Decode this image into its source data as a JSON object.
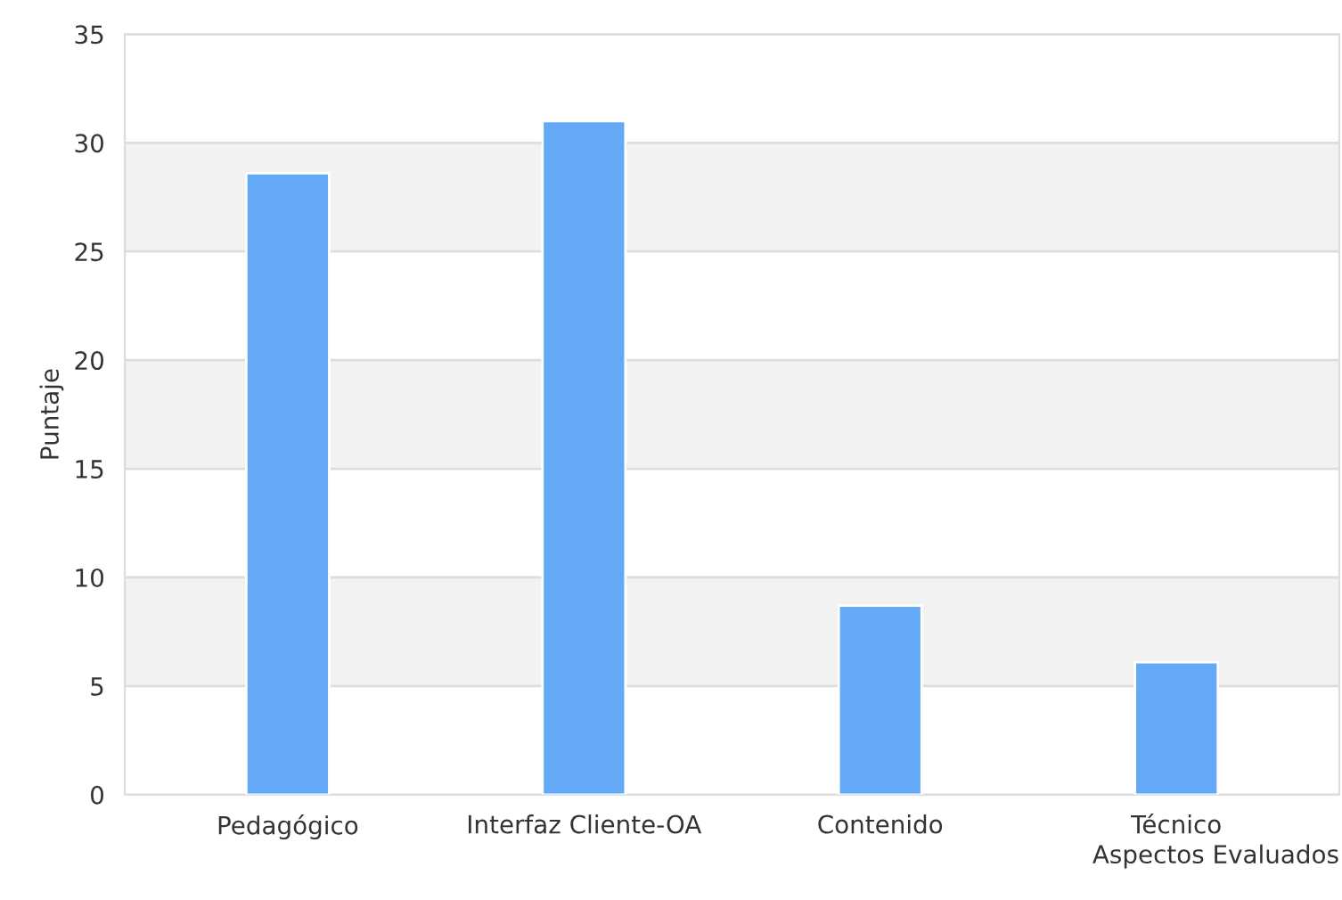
{
  "chart_data": {
    "type": "bar",
    "categories": [
      "Pedagógico",
      "Interfaz Cliente-OA",
      "Contenido",
      "Técnico"
    ],
    "values": [
      28.6,
      31,
      8.7,
      6.1
    ],
    "color": "#63a9f5",
    "xlabel": "Aspectos Evaluados",
    "ylabel": "Puntaje",
    "ylim": [
      0,
      35
    ],
    "yticks": [
      0,
      5,
      10,
      15,
      20,
      25,
      30,
      35
    ],
    "bands": [
      {
        "axis": "y",
        "from": 5,
        "to": 10,
        "color": "#f2f2f2"
      },
      {
        "axis": "y",
        "from": 15,
        "to": 20,
        "color": "#f2f2f2"
      },
      {
        "axis": "y",
        "from": 25,
        "to": 30,
        "color": "#f2f2f2"
      }
    ],
    "grid": "y"
  }
}
